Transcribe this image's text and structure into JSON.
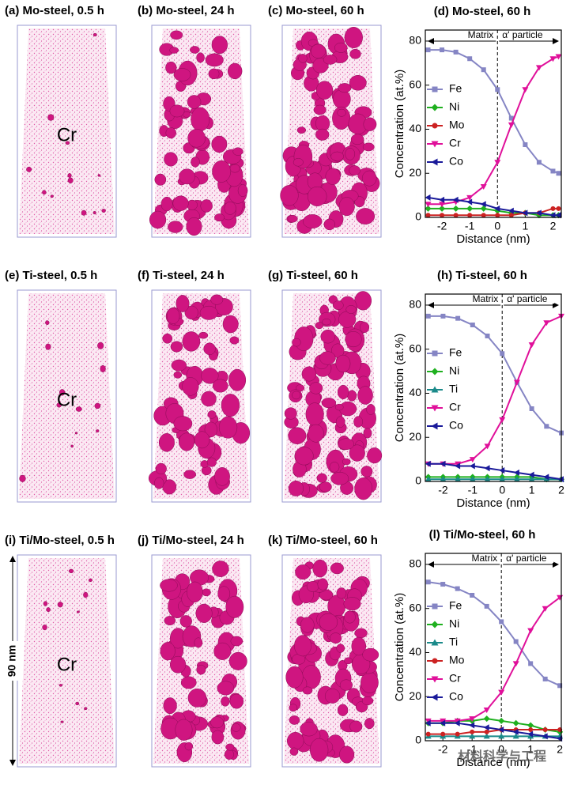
{
  "panels": [
    {
      "label": "(a) Mo-steel, 0.5 h",
      "annotation": "Cr"
    },
    {
      "label": "(b) Mo-steel, 24 h"
    },
    {
      "label": "(c) Mo-steel, 60 h"
    },
    {
      "label": "(e) Ti-steel, 0.5 h",
      "annotation": "Cr"
    },
    {
      "label": "(f) Ti-steel, 24 h"
    },
    {
      "label": "(g) Ti-steel, 60 h"
    },
    {
      "label": "(i) Ti/Mo-steel, 0.5 h",
      "annotation": "Cr",
      "scale": "90 nm"
    },
    {
      "label": "(j) Ti/Mo-steel, 24 h"
    },
    {
      "label": "(k) Ti/Mo-steel, 60 h"
    }
  ],
  "watermark": "材料科学与工程",
  "chart_data": [
    {
      "type": "line",
      "title": "(d) Mo-steel, 60 h",
      "x_label": "Distance (nm)",
      "y_label": "Concentration (at.%)",
      "annotations": [
        "Matrix",
        "α' particle"
      ],
      "x": [
        -2.5,
        -2,
        -1.5,
        -1,
        -0.5,
        0,
        0.5,
        1,
        1.5,
        2,
        2.2
      ],
      "xlim": [
        -2.6,
        2.3
      ],
      "xticks": [
        -2,
        -1,
        0,
        1,
        2
      ],
      "ylim": [
        0,
        85
      ],
      "yticks": [
        0,
        20,
        40,
        60,
        80
      ],
      "legend": "left",
      "series": [
        {
          "name": "Fe",
          "color": "#8585c4",
          "marker": "square",
          "values": [
            76,
            76,
            75,
            72,
            67,
            58,
            45,
            33,
            25,
            21,
            20
          ]
        },
        {
          "name": "Ni",
          "color": "#1fb01f",
          "marker": "diamond",
          "values": [
            4,
            4,
            4,
            4,
            4,
            3,
            2,
            2,
            1,
            1,
            1
          ]
        },
        {
          "name": "Mo",
          "color": "#cc2222",
          "marker": "circle",
          "values": [
            1,
            1,
            1,
            1,
            1,
            1,
            1,
            2,
            2,
            4,
            4
          ]
        },
        {
          "name": "Cr",
          "color": "#e0109a",
          "marker": "triangle-down",
          "values": [
            6,
            6,
            7,
            9,
            14,
            25,
            42,
            58,
            68,
            72,
            73
          ]
        },
        {
          "name": "Co",
          "color": "#1a1a9a",
          "marker": "triangle-left",
          "values": [
            9,
            8,
            8,
            7,
            6,
            4,
            3,
            2,
            2,
            1,
            1
          ]
        }
      ]
    },
    {
      "type": "line",
      "title": "(h) Ti-steel, 60 h",
      "x_label": "Distance (nm)",
      "y_label": "Concentration (at.%)",
      "annotations": [
        "Matrix",
        "α' particle"
      ],
      "x": [
        -2.5,
        -2,
        -1.5,
        -1,
        -0.5,
        0,
        0.5,
        1,
        1.5,
        2
      ],
      "xlim": [
        -2.6,
        2
      ],
      "xticks": [
        -2,
        -1,
        0,
        1,
        2
      ],
      "ylim": [
        0,
        85
      ],
      "yticks": [
        0,
        20,
        40,
        60,
        80
      ],
      "legend": "left",
      "series": [
        {
          "name": "Fe",
          "color": "#8585c4",
          "marker": "square",
          "values": [
            75,
            75,
            74,
            71,
            66,
            58,
            45,
            33,
            25,
            22
          ]
        },
        {
          "name": "Ni",
          "color": "#1fb01f",
          "marker": "diamond",
          "values": [
            2,
            2,
            2,
            2,
            2,
            2,
            2,
            2,
            1,
            1
          ]
        },
        {
          "name": "Ti",
          "color": "#1a8a8a",
          "marker": "triangle-up",
          "values": [
            1,
            1,
            1,
            1,
            1,
            1,
            1,
            1,
            1,
            1
          ]
        },
        {
          "name": "Cr",
          "color": "#e0109a",
          "marker": "triangle-down",
          "values": [
            8,
            8,
            8,
            10,
            16,
            28,
            45,
            62,
            72,
            75
          ]
        },
        {
          "name": "Co",
          "color": "#1a1a9a",
          "marker": "triangle-left",
          "values": [
            8,
            8,
            7,
            7,
            6,
            5,
            4,
            3,
            2,
            1
          ]
        }
      ]
    },
    {
      "type": "line",
      "title": "(l) Ti/Mo-steel, 60 h",
      "x_label": "Distance (nm)",
      "y_label": "Concentration (at.%)",
      "annotations": [
        "Matrix",
        "α' particle"
      ],
      "x": [
        -2.5,
        -2,
        -1.5,
        -1,
        -0.5,
        0,
        0.5,
        1,
        1.5,
        2
      ],
      "xlim": [
        -2.6,
        2.05
      ],
      "xticks": [
        -2,
        -1,
        0,
        1,
        2
      ],
      "ylim": [
        0,
        85
      ],
      "yticks": [
        0,
        20,
        40,
        60,
        80
      ],
      "legend": "left",
      "series": [
        {
          "name": "Fe",
          "color": "#8585c4",
          "marker": "square",
          "values": [
            72,
            71,
            69,
            66,
            61,
            54,
            45,
            35,
            28,
            25
          ]
        },
        {
          "name": "Ni",
          "color": "#1fb01f",
          "marker": "diamond",
          "values": [
            8,
            8,
            9,
            9,
            10,
            9,
            8,
            7,
            5,
            4
          ]
        },
        {
          "name": "Ti",
          "color": "#1a8a8a",
          "marker": "triangle-up",
          "values": [
            2,
            2,
            2,
            2,
            2,
            2,
            2,
            2,
            2,
            2
          ]
        },
        {
          "name": "Mo",
          "color": "#cc2222",
          "marker": "circle",
          "values": [
            3,
            3,
            3,
            4,
            4,
            5,
            5,
            5,
            5,
            5
          ]
        },
        {
          "name": "Cr",
          "color": "#e0109a",
          "marker": "triangle-down",
          "values": [
            9,
            9,
            9,
            10,
            14,
            22,
            35,
            50,
            60,
            65
          ]
        },
        {
          "name": "Co",
          "color": "#1a1a9a",
          "marker": "triangle-left",
          "values": [
            8,
            8,
            8,
            7,
            6,
            5,
            4,
            3,
            2,
            1
          ]
        }
      ]
    }
  ]
}
